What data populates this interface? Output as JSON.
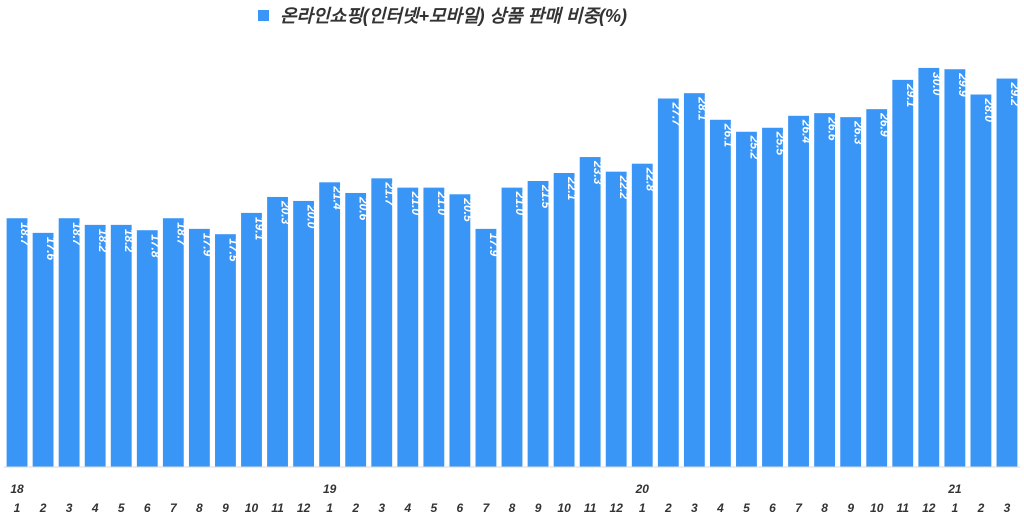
{
  "colors": {
    "bar": "#3a96f6",
    "axis": "#d9d9d9",
    "text": "#333333",
    "value_text": "#ffffff"
  },
  "chart_data": {
    "type": "bar",
    "title": "온라인쇼핑(인터넷+모바일) 상품 판매 비중(%)",
    "legend": {
      "position": "top",
      "entries": [
        "온라인쇼핑(인터넷+모바일) 상품 판매 비중(%)"
      ]
    },
    "grid": false,
    "ylim": [
      0,
      33
    ],
    "year_labels": [
      {
        "index": 0,
        "label": "18"
      },
      {
        "index": 12,
        "label": "19"
      },
      {
        "index": 24,
        "label": "20"
      },
      {
        "index": 36,
        "label": "21"
      }
    ],
    "categories": [
      "1",
      "2",
      "3",
      "4",
      "5",
      "6",
      "7",
      "8",
      "9",
      "10",
      "11",
      "12",
      "1",
      "2",
      "3",
      "4",
      "5",
      "6",
      "7",
      "8",
      "9",
      "10",
      "11",
      "12",
      "1",
      "2",
      "3",
      "4",
      "5",
      "6",
      "7",
      "8",
      "9",
      "10",
      "11",
      "12",
      "1",
      "2",
      "3"
    ],
    "series": [
      {
        "name": "온라인쇼핑(인터넷+모바일) 상품 판매 비중(%)",
        "values": [
          18.7,
          17.6,
          18.7,
          18.2,
          18.2,
          17.8,
          18.7,
          17.9,
          17.5,
          19.1,
          20.3,
          20.0,
          21.4,
          20.6,
          21.7,
          21.0,
          21.0,
          20.5,
          17.9,
          21.0,
          21.5,
          22.1,
          23.3,
          22.2,
          22.8,
          27.7,
          28.1,
          26.1,
          25.2,
          25.5,
          26.4,
          26.6,
          26.3,
          26.9,
          29.1,
          30.0,
          29.9,
          28.0,
          29.2
        ],
        "labels": [
          "18.7",
          "17.6",
          "18.7",
          "18.2",
          "18.2",
          "17.8",
          "18.7",
          "17.9",
          "17.5",
          "19.1",
          "20.3",
          "20.0",
          "21.4",
          "20.6",
          "21.7",
          "21.0",
          "21.0",
          "20.5",
          "17.9",
          "21.0",
          "21.5",
          "22.1",
          "23.3",
          "22.2",
          "22.8",
          "27.7",
          "28.1",
          "26.1",
          "25.2",
          "25.5",
          "26.4",
          "26.6",
          "26.3",
          "26.9",
          "29.1",
          "30.0",
          "29.9",
          "28.0",
          "29.2"
        ]
      }
    ]
  }
}
